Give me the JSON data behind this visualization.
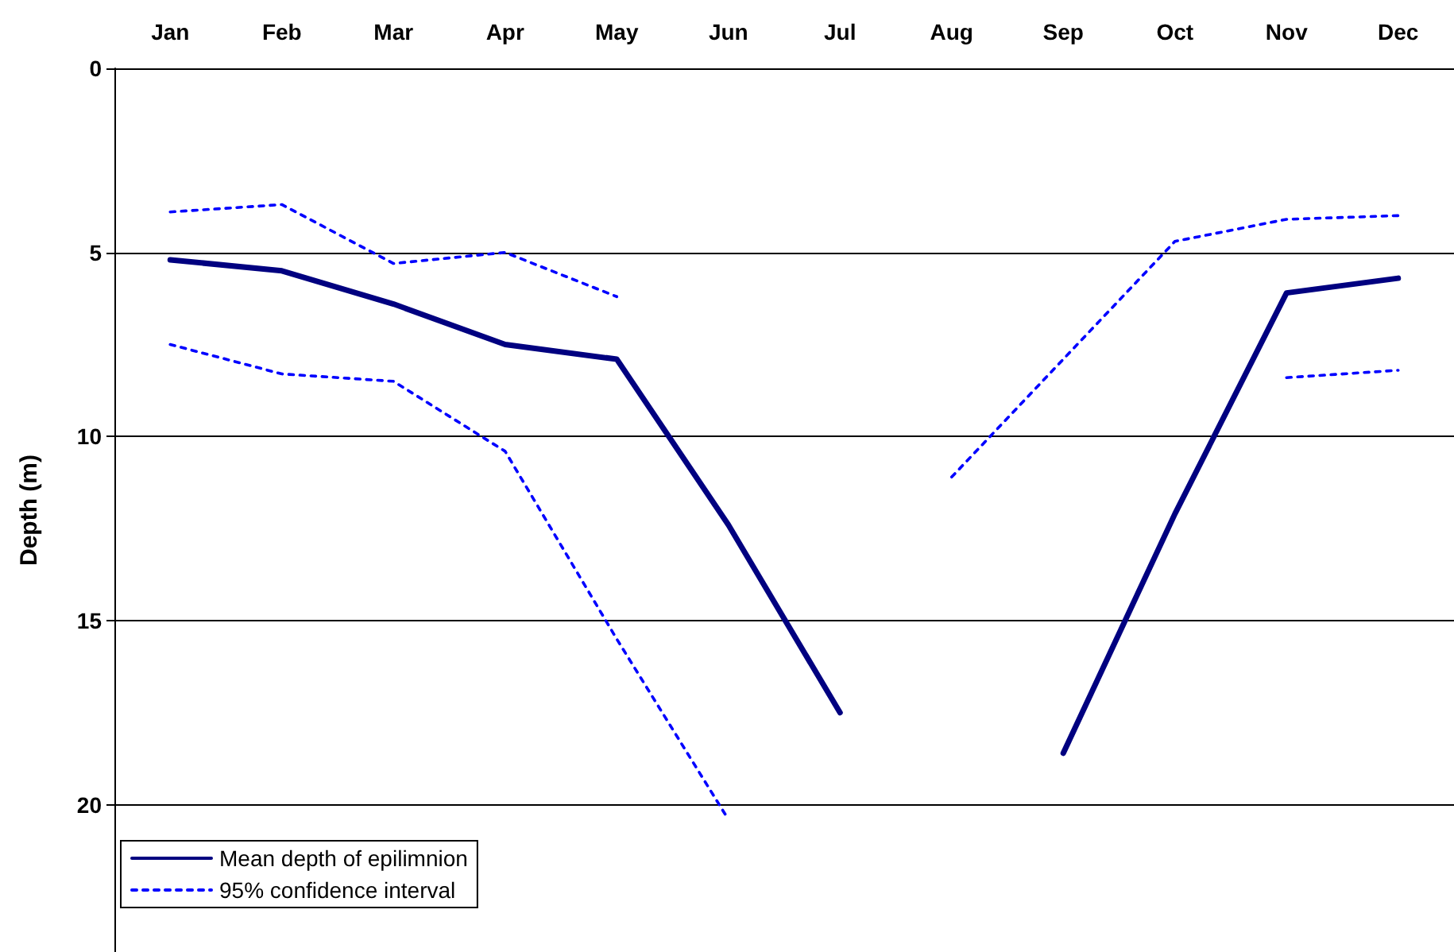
{
  "chart_data": {
    "type": "line",
    "ylabel": "Depth (m)",
    "categories": [
      "Jan",
      "Feb",
      "Mar",
      "Apr",
      "May",
      "Jun",
      "Jul",
      "Aug",
      "Sep",
      "Oct",
      "Nov",
      "Dec"
    ],
    "series": [
      {
        "name": "Mean depth of epilimnion",
        "color": "#000080",
        "line_style": "solid",
        "values": [
          5.2,
          5.5,
          6.4,
          7.5,
          7.9,
          12.4,
          17.5,
          null,
          18.6,
          12.1,
          6.1,
          5.7
        ]
      },
      {
        "name": "95% confidence interval",
        "color": "#0000ff",
        "line_style": "dashed",
        "values": [
          3.9,
          3.7,
          5.3,
          5.0,
          6.2,
          null,
          null,
          11.1,
          7.9,
          4.7,
          4.1,
          4.0
        ]
      },
      {
        "color": "#0000ff",
        "line_style": "dashed",
        "values": [
          7.5,
          8.3,
          8.5,
          10.4,
          15.5,
          20.4,
          null,
          null,
          null,
          null,
          8.4,
          8.2
        ]
      }
    ],
    "ylim": [
      24,
      0
    ],
    "yticks": [
      0,
      5,
      10,
      15,
      20
    ],
    "grid": "y",
    "legend": "bottom left",
    "marker": "none"
  }
}
